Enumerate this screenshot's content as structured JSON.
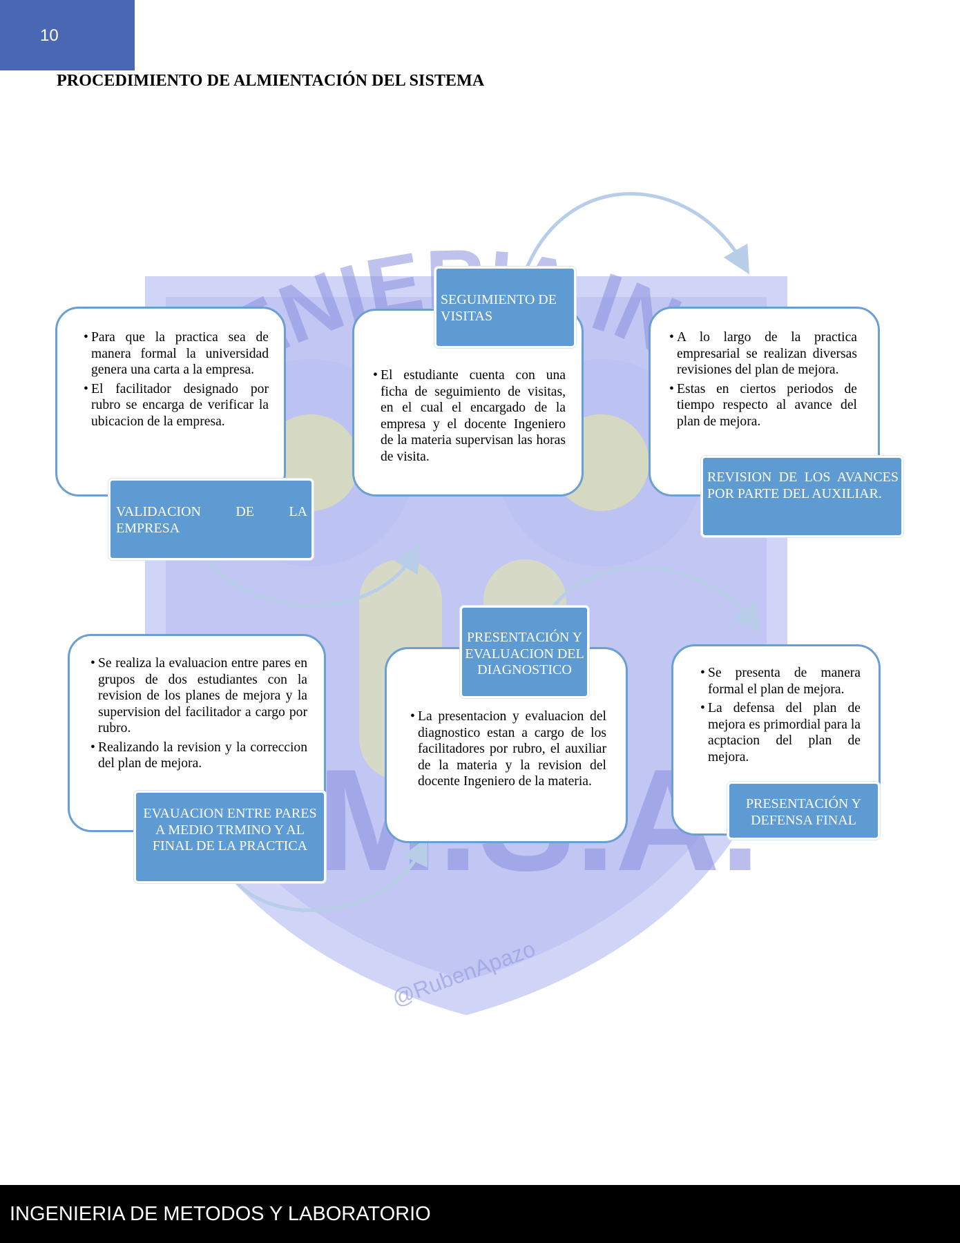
{
  "page": {
    "number": "10"
  },
  "heading": "PROCEDIMIENTO DE ALMIENTACIÓN DEL SISTEMA",
  "watermark": {
    "top_text": "INGENIERIA INDUS",
    "bottom_text": "U.M.S.A.",
    "signature": "@RubenApazo"
  },
  "colors": {
    "badge": "#4a67b4",
    "card_border": "#6b9fd3",
    "label_fill": "#5f9bd3",
    "arrow": "#b7cde8",
    "footer": "#000000"
  },
  "steps": [
    {
      "label": "VALIDACION DE LA EMPRESA",
      "bullets": [
        "Para que la practica sea de manera formal la universidad genera una carta a la empresa.",
        "El facilitador designado por rubro se encarga de verificar la ubicacion de la empresa."
      ]
    },
    {
      "label": "SEGUIMIENTO DE VISITAS",
      "bullets": [
        "El estudiante cuenta con una ficha de seguimiento de visitas, en el cual el encargado de la empresa y el docente Ingeniero de la materia supervisan las horas de visita."
      ]
    },
    {
      "label": "REVISION DE LOS AVANCES POR PARTE DEL AUXILIAR.",
      "bullets": [
        "A lo largo de la practica empresarial se realizan diversas revisiones del plan de mejora.",
        "Estas en ciertos periodos de tiempo respecto al avance del plan de mejora."
      ]
    },
    {
      "label": "EVAUACION ENTRE PARES A MEDIO TRMINO Y AL FINAL DE LA PRACTICA",
      "bullets": [
        "Se realiza la evaluacion entre pares en grupos de dos estudiantes con la revision de los planes de mejora y la supervision del facilitador a cargo por rubro.",
        "Realizando la revision y la correccion del plan de mejora."
      ]
    },
    {
      "label": "PRESENTACIÓN Y EVALUACION DEL DIAGNOSTICO",
      "bullets": [
        "La presentacion y evaluacion del diagnostico estan a cargo de los facilitadores por rubro, el auxiliar de la materia y la revision del docente Ingeniero de la materia."
      ]
    },
    {
      "label": "PRESENTACIÓN Y DEFENSA FINAL",
      "bullets": [
        "Se presenta de manera formal el plan de mejora.",
        "La defensa del plan de mejora es primordial para la acptacion del plan de mejora."
      ]
    }
  ],
  "footer": "INGENIERIA DE METODOS Y LABORATORIO"
}
